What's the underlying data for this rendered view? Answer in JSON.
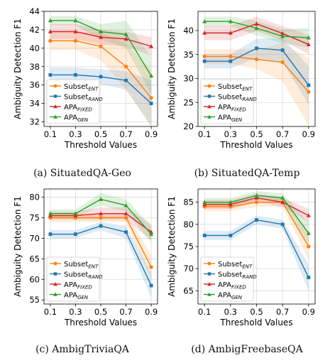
{
  "figure": {
    "legend_labels": {
      "subset_ent": {
        "base": "Subset",
        "sub": "ENT"
      },
      "subset_rand": {
        "base": "Subset",
        "sub": "RAND"
      },
      "apa_fixed": {
        "base": "APA",
        "sub": "FIXED"
      },
      "apa_gen": {
        "base": "APA",
        "sub": "GEN"
      }
    },
    "colors": {
      "subset_ent": "#ff7f0e",
      "subset_rand": "#1f77b4",
      "apa_fixed": "#d62728",
      "apa_gen": "#2ca02c"
    }
  },
  "chart_data": [
    {
      "type": "line",
      "caption": "(a) SituatedQA-Geo",
      "xlabel": "Threshold Values",
      "ylabel": "Ambiguity Detection F1",
      "x": [
        0.1,
        0.3,
        0.5,
        0.7,
        0.9
      ],
      "ylim": [
        31.5,
        44
      ],
      "yticks": [
        32,
        34,
        36,
        38,
        40,
        42,
        44
      ],
      "grid": true,
      "legend_position": "lower-left",
      "series": [
        {
          "key": "subset_ent",
          "values": [
            40.8,
            40.8,
            40.2,
            38.0,
            34.6
          ],
          "band": [
            1.0,
            1.0,
            1.5,
            2.5,
            3.0
          ]
        },
        {
          "key": "subset_rand",
          "values": [
            37.1,
            37.1,
            36.9,
            36.5,
            34.0
          ],
          "band": [
            0.8,
            0.8,
            0.8,
            1.0,
            2.5
          ]
        },
        {
          "key": "apa_fixed",
          "values": [
            41.8,
            41.8,
            41.2,
            41.0,
            40.2
          ],
          "band": [
            0.8,
            0.8,
            0.8,
            0.8,
            1.0
          ]
        },
        {
          "key": "apa_gen",
          "values": [
            43.0,
            43.0,
            41.8,
            41.5,
            37.0
          ],
          "band": [
            0.5,
            0.5,
            0.8,
            1.5,
            2.0
          ]
        }
      ]
    },
    {
      "type": "line",
      "caption": "(b) SituatedQA-Temp",
      "xlabel": "Threshold Values",
      "ylabel": "Ambiguity Detection F1",
      "x": [
        0.1,
        0.3,
        0.5,
        0.7,
        0.9
      ],
      "ylim": [
        20,
        44
      ],
      "yticks": [
        20,
        25,
        30,
        35,
        40
      ],
      "grid": true,
      "legend_position": "lower-left",
      "series": [
        {
          "key": "subset_ent",
          "values": [
            34.6,
            34.6,
            34.0,
            33.4,
            27.2
          ],
          "band": [
            1.5,
            1.5,
            2.0,
            4.0,
            7.0
          ]
        },
        {
          "key": "subset_rand",
          "values": [
            33.6,
            33.6,
            36.3,
            35.9,
            28.6
          ],
          "band": [
            1.5,
            1.5,
            2.0,
            2.5,
            4.0
          ]
        },
        {
          "key": "apa_fixed",
          "values": [
            39.5,
            39.5,
            41.4,
            39.4,
            37.1
          ],
          "band": [
            1.5,
            1.5,
            1.5,
            1.5,
            2.0
          ]
        },
        {
          "key": "apa_gen",
          "values": [
            41.9,
            41.9,
            40.5,
            38.8,
            38.5
          ],
          "band": [
            1.0,
            1.0,
            1.5,
            1.5,
            2.0
          ]
        }
      ]
    },
    {
      "type": "line",
      "caption": "(c) AmbigTriviaQA",
      "xlabel": "Threshold Values",
      "ylabel": "Ambiguity Detection F1",
      "x": [
        0.1,
        0.3,
        0.5,
        0.7,
        0.9
      ],
      "ylim": [
        54,
        82
      ],
      "yticks": [
        55,
        60,
        65,
        70,
        75,
        80
      ],
      "grid": true,
      "legend_position": "lower-left",
      "series": [
        {
          "key": "subset_ent",
          "values": [
            75.0,
            75.0,
            75.0,
            75.0,
            63.0
          ],
          "band": [
            1.0,
            1.0,
            1.0,
            1.0,
            3.0
          ]
        },
        {
          "key": "subset_rand",
          "values": [
            71.0,
            71.0,
            73.0,
            71.5,
            58.5
          ],
          "band": [
            1.0,
            1.0,
            1.0,
            1.5,
            3.0
          ]
        },
        {
          "key": "apa_fixed",
          "values": [
            75.5,
            75.5,
            76.0,
            76.0,
            71.5
          ],
          "band": [
            1.0,
            1.0,
            1.5,
            1.5,
            2.0
          ]
        },
        {
          "key": "apa_gen",
          "values": [
            76.0,
            76.0,
            79.5,
            78.0,
            71.0
          ],
          "band": [
            1.0,
            1.0,
            1.5,
            1.5,
            2.0
          ]
        }
      ]
    },
    {
      "type": "line",
      "caption": "(d) AmbigFreebaseQA",
      "xlabel": "Threshold Values",
      "ylabel": "Ambiguity Detection F1",
      "x": [
        0.1,
        0.3,
        0.5,
        0.7,
        0.9
      ],
      "ylim": [
        62,
        88
      ],
      "yticks": [
        65,
        70,
        75,
        80,
        85
      ],
      "grid": true,
      "legend_position": "lower-left",
      "series": [
        {
          "key": "subset_ent",
          "values": [
            84.0,
            84.0,
            85.0,
            85.0,
            75.0
          ],
          "band": [
            1.0,
            1.0,
            1.0,
            1.0,
            3.0
          ]
        },
        {
          "key": "subset_rand",
          "values": [
            77.5,
            77.5,
            81.0,
            80.0,
            68.0
          ],
          "band": [
            1.0,
            1.0,
            1.0,
            1.0,
            3.0
          ]
        },
        {
          "key": "apa_fixed",
          "values": [
            84.5,
            84.5,
            86.0,
            85.0,
            82.0
          ],
          "band": [
            1.0,
            1.0,
            1.0,
            1.0,
            1.5
          ]
        },
        {
          "key": "apa_gen",
          "values": [
            85.0,
            85.0,
            86.5,
            86.0,
            78.0
          ],
          "band": [
            1.0,
            1.0,
            1.0,
            1.0,
            2.5
          ]
        }
      ]
    }
  ]
}
